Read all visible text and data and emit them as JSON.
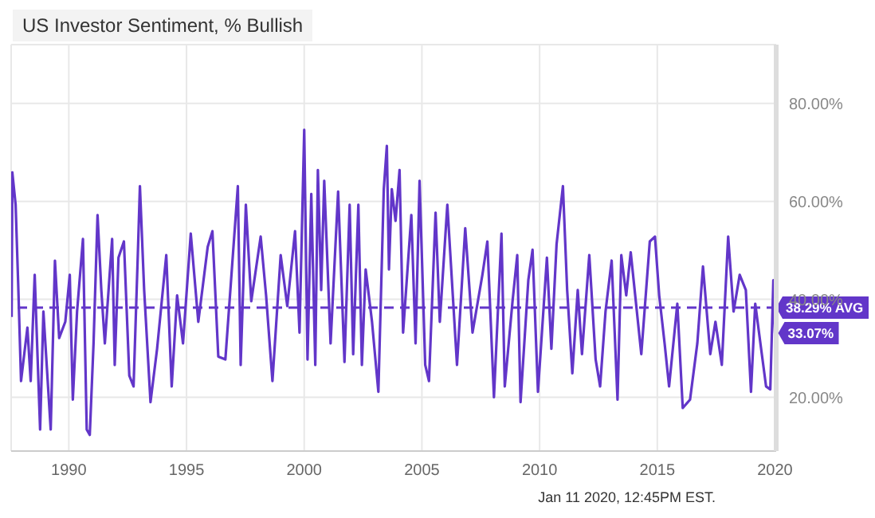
{
  "chart_data": {
    "type": "line",
    "title": "US Investor Sentiment, % Bullish",
    "xlim": [
      1987.55,
      2020.05
    ],
    "xticks": [
      1990,
      1995,
      2000,
      2005,
      2010,
      2015,
      2020
    ],
    "ylim": [
      9,
      92
    ],
    "yticks": [
      {
        "value": 20,
        "label": "20.00%"
      },
      {
        "value": 40,
        "label": "40.00%"
      },
      {
        "value": 60,
        "label": "60.00%"
      },
      {
        "value": 80,
        "label": "80.00%"
      }
    ],
    "grid": true,
    "series": [
      {
        "color": "#6236c9",
        "x": [
          1987.57,
          1987.6,
          1987.74,
          1987.85,
          1987.97,
          1988.24,
          1988.38,
          1988.55,
          1988.78,
          1988.92,
          1989.23,
          1989.41,
          1989.59,
          1989.85,
          1990.04,
          1990.17,
          1990.35,
          1990.6,
          1990.76,
          1990.89,
          1991.05,
          1991.22,
          1991.38,
          1991.53,
          1991.84,
          1991.95,
          1992.11,
          1992.34,
          1992.57,
          1992.75,
          1992.93,
          1993.02,
          1993.2,
          1993.47,
          1993.75,
          1994.14,
          1994.37,
          1994.6,
          1994.85,
          1995.18,
          1995.5,
          1995.9,
          1996.1,
          1996.35,
          1996.65,
          1997.18,
          1997.3,
          1997.52,
          1997.75,
          1998.15,
          1998.38,
          1998.65,
          1999.0,
          1999.28,
          1999.61,
          1999.8,
          2000.0,
          2000.14,
          2000.3,
          2000.47,
          2000.58,
          2000.72,
          2000.85,
          2001.12,
          2001.44,
          2001.71,
          2001.93,
          2002.08,
          2002.3,
          2002.45,
          2002.61,
          2002.88,
          2003.15,
          2003.38,
          2003.51,
          2003.6,
          2003.72,
          2003.88,
          2004.05,
          2004.2,
          2004.55,
          2004.73,
          2004.9,
          2005.14,
          2005.3,
          2005.58,
          2005.76,
          2006.08,
          2006.49,
          2006.84,
          2007.15,
          2007.57,
          2007.78,
          2008.06,
          2008.38,
          2008.52,
          2008.85,
          2009.05,
          2009.19,
          2009.52,
          2009.7,
          2009.93,
          2010.31,
          2010.5,
          2010.72,
          2010.99,
          2011.17,
          2011.39,
          2011.62,
          2011.8,
          2012.11,
          2012.38,
          2012.57,
          2012.8,
          2013.06,
          2013.31,
          2013.47,
          2013.68,
          2013.87,
          2014.32,
          2014.68,
          2014.9,
          2015.08,
          2015.31,
          2015.5,
          2015.85,
          2016.08,
          2016.39,
          2016.7,
          2016.94,
          2017.25,
          2017.47,
          2017.74,
          2018.01,
          2018.24,
          2018.5,
          2018.76,
          2018.98,
          2019.16,
          2019.44,
          2019.62,
          2019.8,
          2019.93,
          2020.0
        ],
        "values": [
          36.4,
          65.9,
          59.3,
          42.9,
          23.3,
          34.2,
          23.3,
          45,
          13.4,
          37.5,
          13.4,
          47.9,
          32.1,
          35.4,
          45,
          19.5,
          37.5,
          52.3,
          13.4,
          12.3,
          31,
          57.2,
          41.9,
          31,
          52.3,
          26.6,
          48.5,
          51.8,
          24.4,
          22.2,
          49,
          63.1,
          41.9,
          19,
          29.9,
          49,
          22.2,
          40.8,
          31,
          53.4,
          35.4,
          50.7,
          53.9,
          28.3,
          27.7,
          63.1,
          26.6,
          59.3,
          39.6,
          52.8,
          40.8,
          23.3,
          49,
          38.6,
          53.9,
          33.2,
          74.6,
          27.7,
          61.5,
          26.6,
          66.4,
          41.9,
          64.2,
          31,
          62,
          27.2,
          59.3,
          28.8,
          59.3,
          26.6,
          46.1,
          35.4,
          21.1,
          62.5,
          71.3,
          46.1,
          62.5,
          56,
          66.4,
          33.2,
          57.2,
          31,
          64.2,
          26.6,
          23.3,
          57.7,
          35.4,
          59.3,
          26.6,
          54.5,
          33.2,
          45,
          51.8,
          20,
          53.4,
          22.2,
          39.6,
          49,
          19,
          43.9,
          50.1,
          21.1,
          48.5,
          29.9,
          51.2,
          63.1,
          41.9,
          24.9,
          41.9,
          28.8,
          49,
          27.7,
          22.2,
          37.5,
          47.9,
          19.5,
          49,
          40.8,
          49.6,
          28.8,
          51.8,
          52.8,
          40.8,
          31,
          22.2,
          39.1,
          17.8,
          19.5,
          31,
          46.7,
          28.8,
          35.4,
          26.6,
          52.8,
          37.5,
          45,
          41.9,
          21.1,
          39.1,
          28.8,
          22.2,
          21.6,
          43.9,
          33.07
        ]
      }
    ],
    "ref_lines": [
      {
        "axis": "y",
        "value": 38.29,
        "label": "38.29% AVG",
        "color": "#6236c9",
        "line_style": "dashed"
      }
    ],
    "annotations": [
      {
        "text": "33.07%",
        "x": 2020.0,
        "y": 33.07
      },
      "Jan 11 2020, 12:45PM EST."
    ]
  }
}
